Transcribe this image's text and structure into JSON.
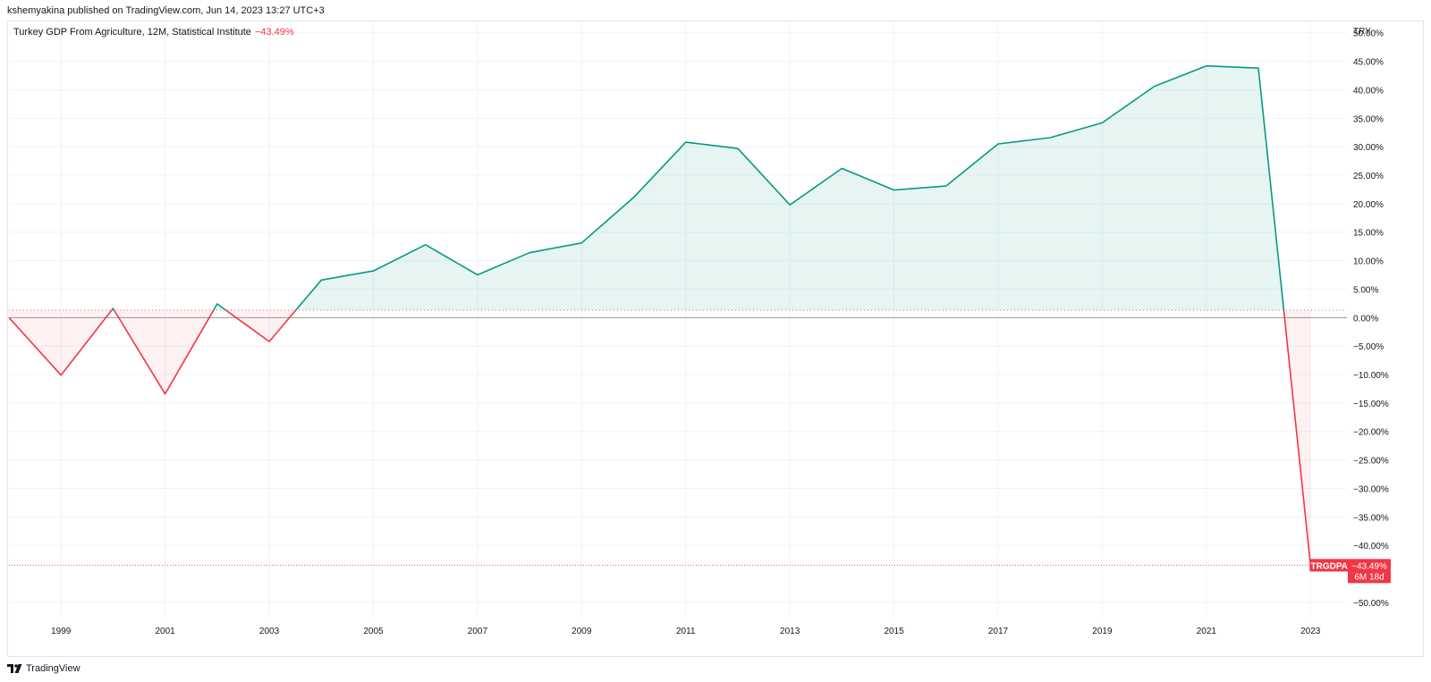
{
  "header": {
    "published_by": "kshemyakina published on TradingView.com, Jun 14, 2023 13:27 UTC+3"
  },
  "legend": {
    "series_title": "Turkey GDP From Agriculture, 12M, Statistical Institute",
    "change": "−43.49%"
  },
  "footer": {
    "brand": "TradingView"
  },
  "colors": {
    "up_line": "#089981",
    "down_line": "#f23645",
    "up_fill": "#089981",
    "down_fill": "#f23645",
    "grid": "#f0f3fa",
    "axis_text": "#131722",
    "label_bg": "#f23645"
  },
  "chart_data": {
    "type": "area",
    "currency": "TRY",
    "ticker": "TRGDPA",
    "last_value_label": "−43.49%",
    "countdown": "6M 18d",
    "x": [
      1998,
      1999,
      2000,
      2001,
      2002,
      2003,
      2004,
      2005,
      2006,
      2007,
      2008,
      2009,
      2010,
      2011,
      2012,
      2013,
      2014,
      2015,
      2016,
      2017,
      2018,
      2019,
      2020,
      2021,
      2022,
      2023
    ],
    "values": [
      0.0,
      -10.1,
      1.6,
      -13.4,
      2.4,
      -4.2,
      6.6,
      8.2,
      12.8,
      7.5,
      11.4,
      13.1,
      21.1,
      30.8,
      29.7,
      19.8,
      26.2,
      22.4,
      23.1,
      30.5,
      31.6,
      34.2,
      40.6,
      44.2,
      43.8,
      -43.49
    ],
    "baseline": 1.3,
    "x_tick_labels": [
      "1999",
      "2001",
      "2003",
      "2005",
      "2007",
      "2009",
      "2011",
      "2013",
      "2015",
      "2017",
      "2019",
      "2021",
      "2023"
    ],
    "x_tick_values": [
      1999,
      2001,
      2003,
      2005,
      2007,
      2009,
      2011,
      2013,
      2015,
      2017,
      2019,
      2021,
      2023
    ],
    "y_ticks": [
      50,
      45,
      40,
      35,
      30,
      25,
      20,
      15,
      10,
      5,
      0,
      -5,
      -10,
      -15,
      -20,
      -25,
      -30,
      -35,
      -40,
      -50
    ],
    "y_tick_labels": [
      "50.00%",
      "45.00%",
      "40.00%",
      "35.00%",
      "30.00%",
      "25.00%",
      "20.00%",
      "15.00%",
      "10.00%",
      "5.00%",
      "0.00%",
      "−5.00%",
      "−10.00%",
      "−15.00%",
      "−20.00%",
      "−25.00%",
      "−30.00%",
      "−35.00%",
      "−40.00%",
      "−50.00%"
    ],
    "ylim": [
      -53,
      52
    ],
    "xlim": [
      1998,
      2023.7
    ],
    "grid": true
  }
}
